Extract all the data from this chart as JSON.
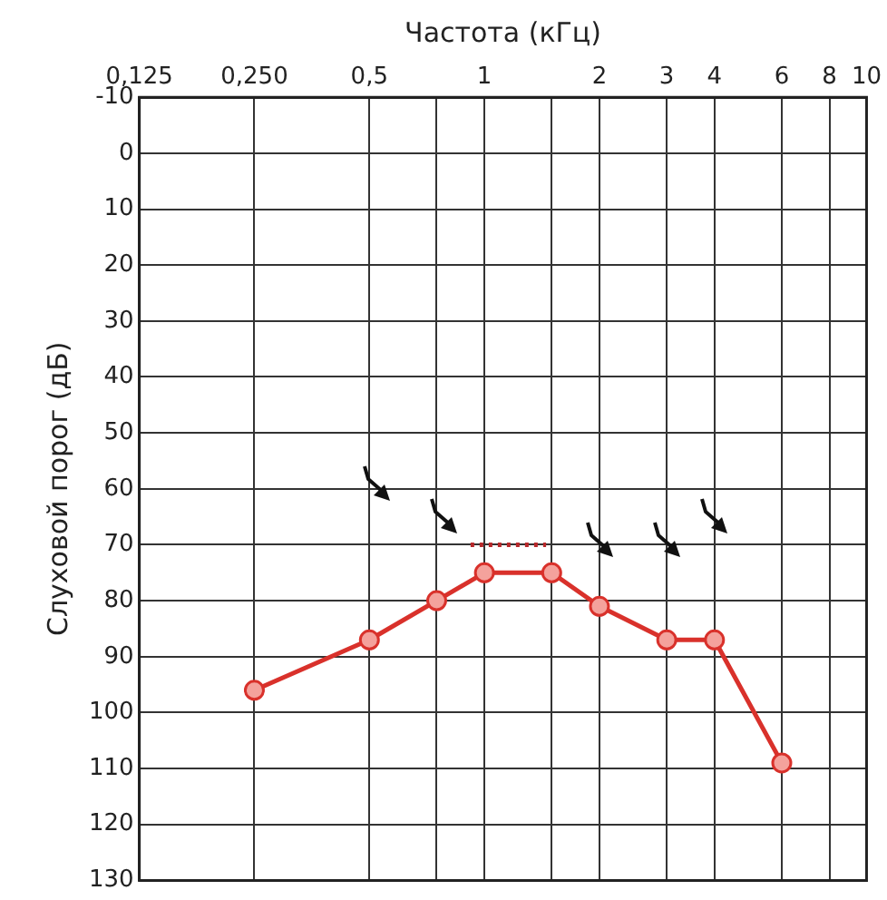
{
  "chart_data": {
    "type": "line",
    "xlabel": "Частота (кГц)",
    "ylabel": "Слуховой порог (дБ)",
    "log": "x",
    "xlim": [
      0.125,
      10
    ],
    "xticks": [
      {
        "value": 0.125,
        "label": "0,125"
      },
      {
        "value": 0.25,
        "label": "0,250"
      },
      {
        "value": 0.5,
        "label": "0,5"
      },
      {
        "value": 0.75,
        "label": null
      },
      1,
      {
        "value": 1.5,
        "label": null
      },
      2,
      3,
      4,
      6,
      8,
      10
    ],
    "ylim": [
      130,
      -10
    ],
    "yticks": [
      -10,
      0,
      10,
      20,
      30,
      40,
      50,
      60,
      70,
      80,
      90,
      100,
      110,
      120,
      130
    ],
    "grid": true,
    "legend": false,
    "marker": "circle",
    "line_style": "solid",
    "x": [
      0.25,
      0.5,
      0.75,
      1,
      1.5,
      2,
      3,
      4,
      6
    ],
    "series": [
      {
        "color": "#d9312b",
        "values": [
          96,
          87,
          80,
          75,
          75,
          81,
          87,
          87,
          109
        ]
      },
      {
        "color": "#b8282a",
        "x": [
          0.92,
          1.45
        ],
        "values": [
          70,
          70
        ],
        "line_style": "dotted",
        "marker": "none"
      }
    ]
  }
}
